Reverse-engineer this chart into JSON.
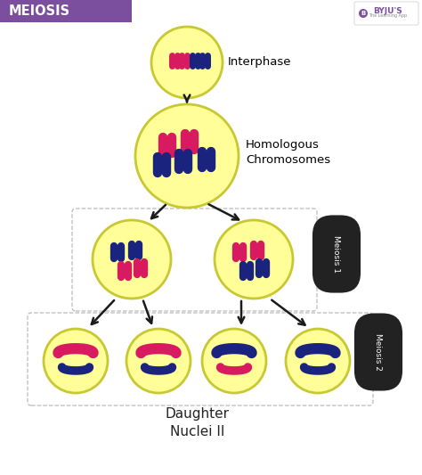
{
  "title": "MEIOSIS",
  "title_bg": "#7B4F9E",
  "title_color": "#FFFFFF",
  "bg_color": "#FFFFFF",
  "cell_color": "#FFFE99",
  "cell_edge": "#C8C832",
  "pink": "#D81B60",
  "blue": "#1A237E",
  "label_interphase": "Interphase",
  "label_homologous": "Homologous\nChromosomes",
  "label_meiosis1": "Meiosis 1",
  "label_meiosis2": "Meiosis 2",
  "label_daughter": "Daughter\nNuclei II",
  "arrow_color": "#1a1a1a",
  "dashed_color": "#AAAAAA",
  "byju_color": "#7B4F9E",
  "dark_label": "#222222"
}
